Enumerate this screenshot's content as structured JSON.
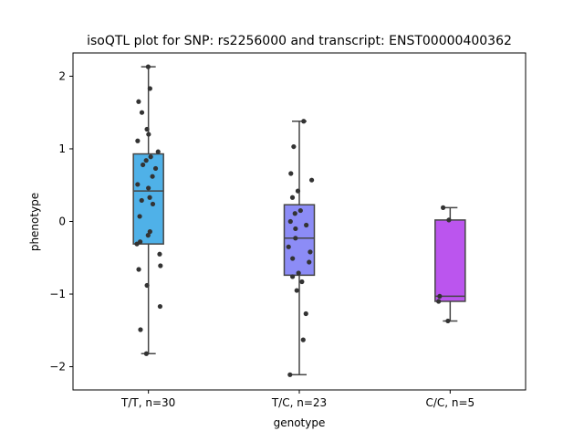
{
  "chart_data": {
    "type": "box",
    "title": "isoQTL plot for SNP: rs2256000 and transcript: ENST00000400362",
    "xlabel": "genotype",
    "ylabel": "phenotype",
    "ylim": [
      -2.32,
      2.32
    ],
    "yticks": [
      {
        "value": 2,
        "label": "2"
      },
      {
        "value": 1,
        "label": "1"
      },
      {
        "value": 0,
        "label": "0"
      },
      {
        "value": -1,
        "label": "−1"
      },
      {
        "value": -2,
        "label": "−2"
      }
    ],
    "grid": false,
    "groups": [
      {
        "label": "T/T, n=30",
        "color": "#4fb1e8",
        "box": {
          "whisker_low": -1.82,
          "q1": -0.31,
          "median": 0.42,
          "q3": 0.93,
          "whisker_high": 2.13
        },
        "points": [
          2.13,
          1.83,
          1.65,
          1.5,
          1.27,
          1.2,
          1.11,
          0.96,
          0.89,
          0.84,
          0.78,
          0.73,
          0.62,
          0.51,
          0.46,
          0.29,
          0.24,
          0.07,
          -0.14,
          -0.19,
          -0.28,
          -0.31,
          -0.45,
          -0.61,
          -0.66,
          -0.88,
          -1.17,
          -1.49,
          -1.82,
          0.33
        ]
      },
      {
        "label": "T/C, n=23",
        "color": "#8c8cf6",
        "box": {
          "whisker_low": -2.11,
          "q1": -0.74,
          "median": -0.23,
          "q3": 0.23,
          "whisker_high": 1.38
        },
        "points": [
          1.38,
          1.03,
          0.66,
          0.57,
          0.42,
          0.33,
          0.15,
          0.11,
          0.0,
          -0.05,
          -0.1,
          -0.23,
          -0.35,
          -0.42,
          -0.51,
          -0.56,
          -0.71,
          -0.76,
          -0.83,
          -0.95,
          -1.27,
          -1.63,
          -2.11
        ]
      },
      {
        "label": "C/C, n=5",
        "color": "#bb55ee",
        "box": {
          "whisker_low": -1.37,
          "q1": -1.1,
          "median": -1.03,
          "q3": 0.02,
          "whisker_high": 0.19
        },
        "points": [
          0.19,
          0.02,
          -1.03,
          -1.1,
          -1.37
        ]
      }
    ]
  }
}
